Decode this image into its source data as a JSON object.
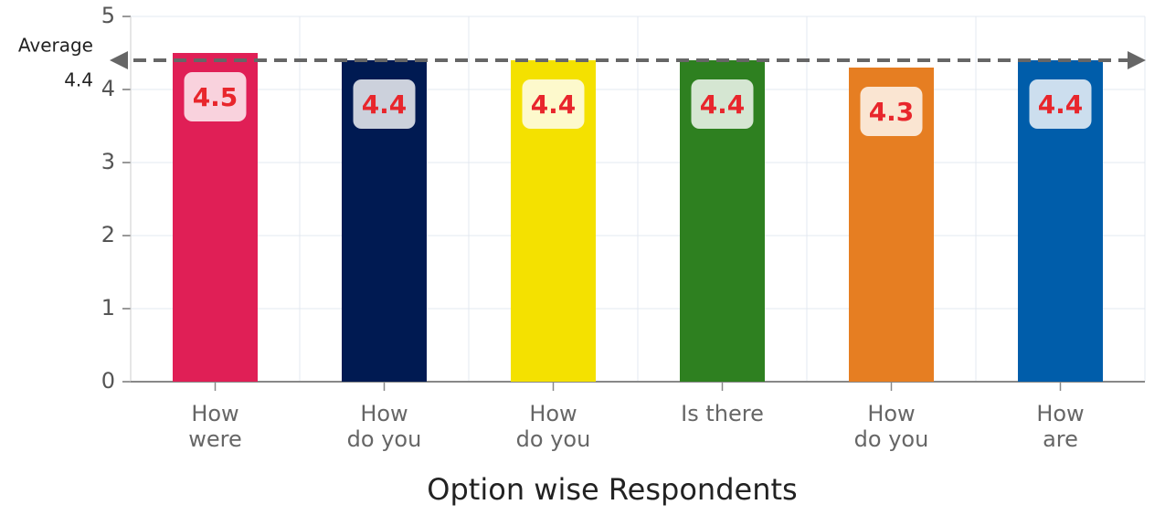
{
  "chart_data": {
    "type": "bar",
    "x_label": "Option wise Respondents",
    "categories": [
      [
        "How",
        "were"
      ],
      [
        "How",
        "do you"
      ],
      [
        "How",
        "do you"
      ],
      [
        "Is there"
      ],
      [
        "How",
        "do you"
      ],
      [
        "How",
        "are"
      ]
    ],
    "values": [
      4.5,
      4.4,
      4.4,
      4.4,
      4.3,
      4.4
    ],
    "colors": [
      "#e01f56",
      "#001a52",
      "#f4e100",
      "#2e8020",
      "#e67e22",
      "#005daa"
    ],
    "ylim": [
      0,
      5
    ],
    "yticks": [
      0,
      1,
      2,
      3,
      4,
      5
    ],
    "grid": true,
    "average": {
      "label": "Average",
      "value": 4.4
    }
  }
}
